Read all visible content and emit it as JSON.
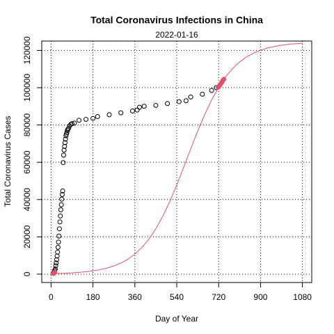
{
  "chart_data": {
    "type": "scatter",
    "title": "Total Coronavirus Infections in China",
    "subtitle": "2022-01-16",
    "x_label": "Day of Year",
    "y_label": "Total Coronavirus Cases",
    "xlim": [
      -40,
      1120
    ],
    "ylim": [
      -4500,
      125000
    ],
    "xticks": [
      0,
      180,
      360,
      540,
      720,
      900,
      1080
    ],
    "yticks": [
      0,
      20000,
      40000,
      60000,
      80000,
      100000,
      120000
    ],
    "grid": true,
    "series": [
      {
        "color": "#000000",
        "marker": "open",
        "x": [
          10,
          12,
          14,
          16,
          18,
          20,
          22,
          24,
          26,
          28,
          30,
          32,
          34,
          36,
          38,
          40,
          42,
          44,
          46,
          48,
          50,
          52,
          54,
          56,
          58,
          60,
          62,
          64,
          66,
          68,
          70,
          72,
          75,
          80,
          85,
          90,
          100,
          120,
          150,
          180,
          200,
          250,
          300,
          350,
          370,
          380,
          400,
          450,
          500,
          550,
          580,
          600,
          650,
          690,
          710
        ],
        "values": [
          550,
          830,
          1300,
          2000,
          2800,
          4500,
          6000,
          7700,
          9700,
          11800,
          14400,
          17200,
          20400,
          24300,
          28000,
          31200,
          34500,
          37200,
          40200,
          42700,
          44600,
          59800,
          63800,
          66500,
          68500,
          70500,
          72400,
          74200,
          75100,
          76000,
          77000,
          77600,
          78100,
          79500,
          80300,
          80700,
          81000,
          82500,
          83000,
          83500,
          84500,
          85500,
          86500,
          87500,
          88000,
          89500,
          90000,
          90500,
          91500,
          92500,
          93000,
          95000,
          96500,
          98500,
          100000
        ]
      },
      {
        "color": "#DF536B",
        "marker": "filled",
        "x": [
          10,
          12,
          14,
          16,
          718,
          722,
          726,
          730,
          734,
          738,
          742
        ],
        "values": [
          300,
          500,
          800,
          1000,
          100200,
          100800,
          101500,
          102200,
          103000,
          103800,
          104500
        ]
      },
      {
        "color": "#DF536B",
        "style": "line",
        "x": [
          0,
          30,
          60,
          90,
          120,
          150,
          180,
          210,
          240,
          270,
          300,
          330,
          360,
          390,
          420,
          450,
          480,
          510,
          540,
          570,
          600,
          630,
          660,
          690,
          720,
          750,
          780,
          810,
          840,
          870,
          900,
          930,
          960,
          990,
          1020,
          1050,
          1080
        ],
        "values": [
          267,
          366,
          501,
          686,
          937,
          1280,
          1746,
          2378,
          3240,
          4396,
          5946,
          8006,
          10714,
          14229,
          18708,
          24283,
          31032,
          38931,
          47811,
          57347,
          67153,
          76692,
          85567,
          93468,
          100217,
          105793,
          110273,
          113782,
          116497,
          118549,
          120104,
          121262,
          122119,
          122757,
          123219,
          123573,
          123819
        ]
      }
    ]
  }
}
